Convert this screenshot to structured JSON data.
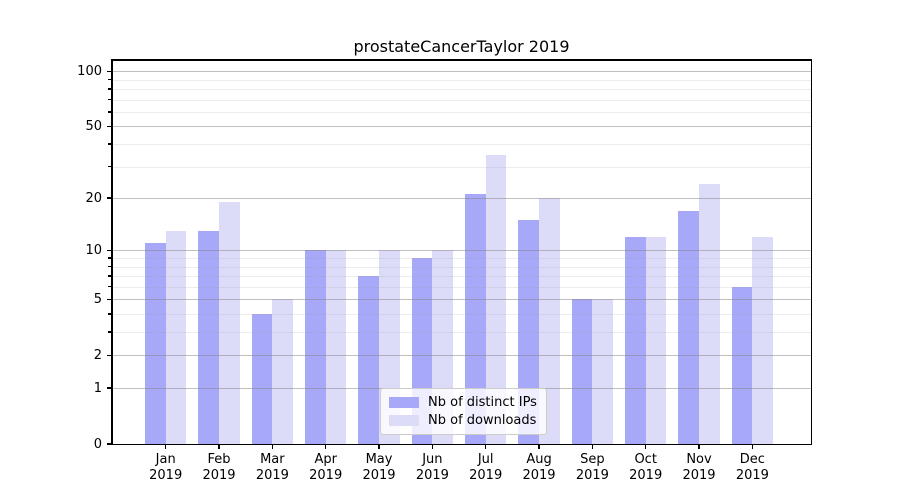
{
  "chart_data": {
    "type": "bar",
    "title": "prostateCancerTaylor 2019",
    "categories": [
      "Jan 2019",
      "Feb 2019",
      "Mar 2019",
      "Apr 2019",
      "May 2019",
      "Jun 2019",
      "Jul 2019",
      "Aug 2019",
      "Sep 2019",
      "Oct 2019",
      "Nov 2019",
      "Dec 2019"
    ],
    "series": [
      {
        "name": "Nb of distinct IPs",
        "color": "#a8a8f8",
        "values": [
          11,
          13,
          4,
          10,
          7,
          9,
          21,
          15,
          5,
          12,
          17,
          6
        ]
      },
      {
        "name": "Nb of downloads",
        "color": "#dcdcf9",
        "values": [
          13,
          19,
          5,
          10,
          10,
          10,
          35,
          20,
          5,
          12,
          24,
          12
        ]
      }
    ],
    "y_axis": {
      "scale": "log1p",
      "major_ticks": [
        0,
        1,
        2,
        5,
        10,
        20,
        50,
        100
      ],
      "minor_ticks": [
        3,
        4,
        6,
        7,
        8,
        9,
        30,
        40,
        60,
        70,
        80,
        90
      ],
      "max": 115
    },
    "x_axis": {
      "tick_year_line": "2019"
    },
    "legend_position": "bottom-center",
    "grid": true
  }
}
